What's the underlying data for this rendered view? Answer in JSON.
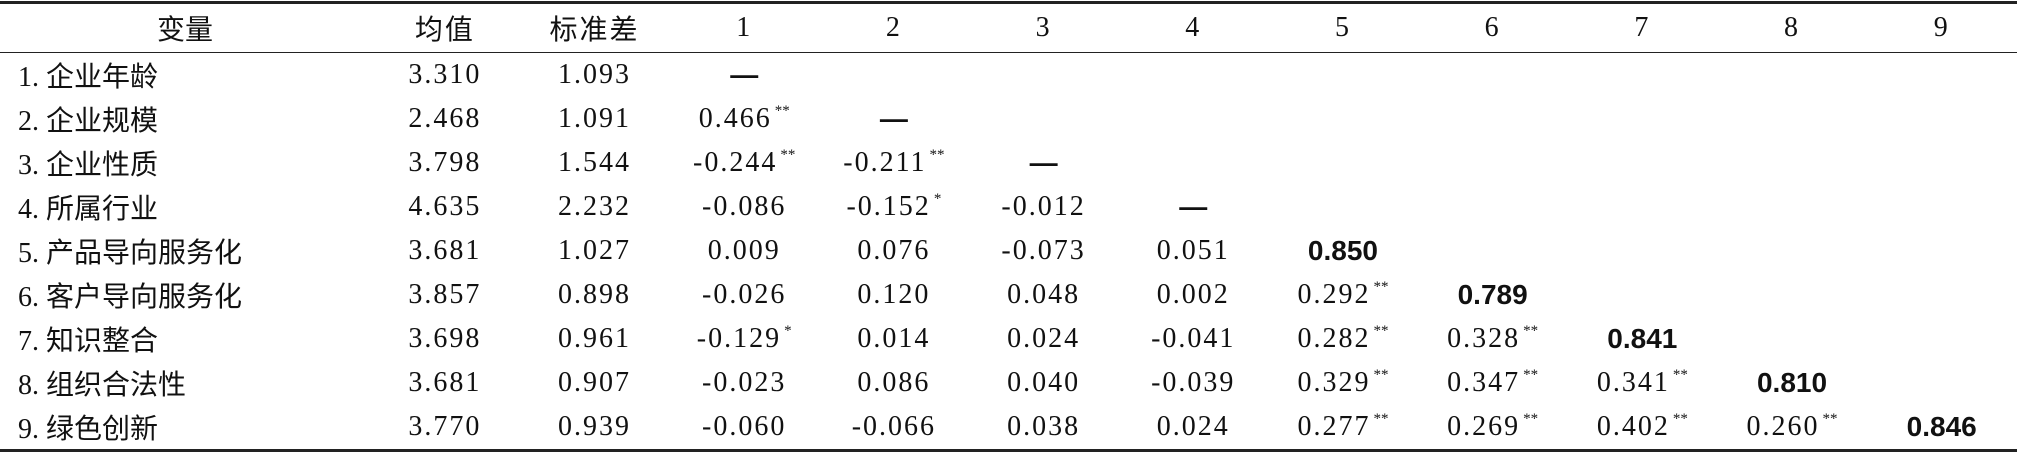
{
  "table": {
    "header": [
      "变量",
      "均值",
      "标准差",
      "1",
      "2",
      "3",
      "4",
      "5",
      "6",
      "7",
      "8",
      "9"
    ],
    "rows": [
      [
        "1. 企业年龄",
        "3.310",
        "1.093",
        "—"
      ],
      [
        "2. 企业规模",
        "2.468",
        "1.091",
        {
          "text": "0.466",
          "sup": "**"
        },
        "—"
      ],
      [
        "3. 企业性质",
        "3.798",
        "1.544",
        {
          "text": "-0.244",
          "sup": "**"
        },
        {
          "text": "-0.211",
          "sup": "**"
        },
        "—"
      ],
      [
        "4. 所属行业",
        "4.635",
        "2.232",
        "-0.086",
        {
          "text": "-0.152",
          "sup": "*"
        },
        "-0.012",
        "—"
      ],
      [
        "5. 产品导向服务化",
        "3.681",
        "1.027",
        "0.009",
        "0.076",
        "-0.073",
        "0.051",
        "0.850"
      ],
      [
        "6. 客户导向服务化",
        "3.857",
        "0.898",
        "-0.026",
        "0.120",
        "0.048",
        "0.002",
        {
          "text": "0.292",
          "sup": "**"
        },
        "0.789"
      ],
      [
        "7. 知识整合",
        "3.698",
        "0.961",
        {
          "text": "-0.129",
          "sup": "*"
        },
        "0.014",
        "0.024",
        "-0.041",
        {
          "text": "0.282",
          "sup": "**"
        },
        {
          "text": "0.328",
          "sup": "**"
        },
        "0.841"
      ],
      [
        "8. 组织合法性",
        "3.681",
        "0.907",
        "-0.023",
        "0.086",
        "0.040",
        "-0.039",
        {
          "text": "0.329",
          "sup": "**"
        },
        {
          "text": "0.347",
          "sup": "**"
        },
        {
          "text": "0.341",
          "sup": "**"
        },
        "0.810"
      ],
      [
        "9. 绿色创新",
        "3.770",
        "0.939",
        "-0.060",
        "-0.066",
        "0.038",
        "0.024",
        {
          "text": "0.277",
          "sup": "**"
        },
        {
          "text": "0.269",
          "sup": "**"
        },
        {
          "text": "0.402",
          "sup": "**"
        },
        {
          "text": "0.260",
          "sup": "**"
        },
        "0.846"
      ]
    ]
  }
}
